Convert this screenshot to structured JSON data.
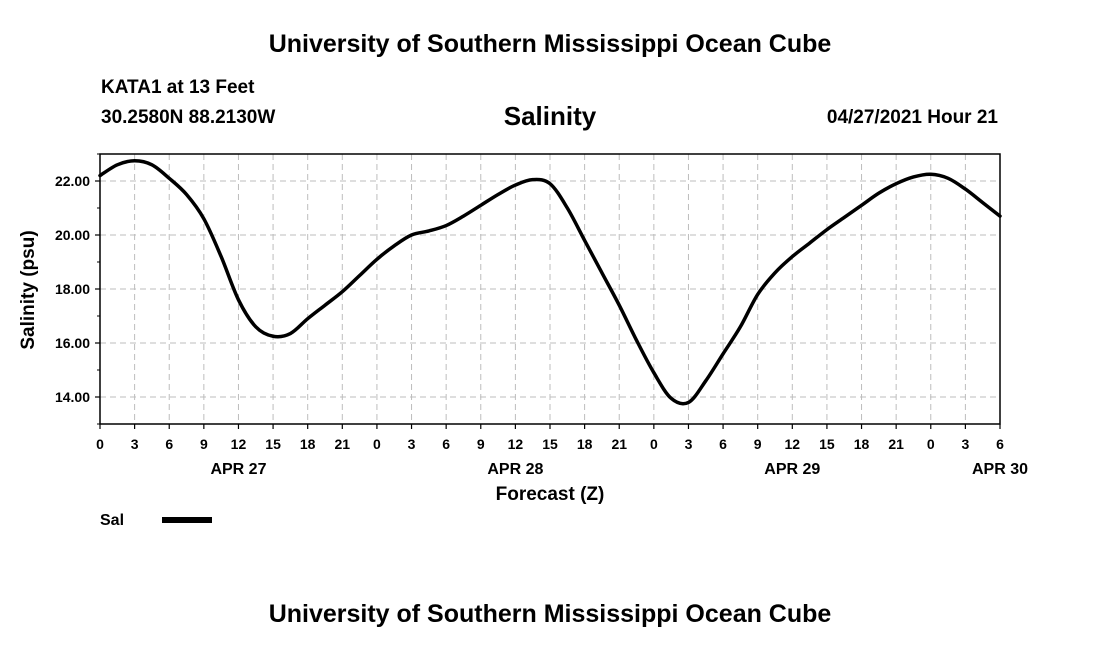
{
  "header": {
    "title": "University of Southern Mississippi Ocean Cube",
    "station": "KATA1 at 13 Feet",
    "coords": "30.2580N  88.2130W",
    "chart_title": "Salinity",
    "timestamp": "04/27/2021 Hour 21"
  },
  "footer": {
    "title": "University of Southern Mississippi Ocean Cube"
  },
  "chart_data": {
    "type": "line",
    "title": "Salinity",
    "xlabel": "Forecast (Z)",
    "ylabel": "Salinity (psu)",
    "x_range": [
      0,
      78
    ],
    "ylim": [
      13.0,
      23.0
    ],
    "y_ticks": [
      "14.00",
      "16.00",
      "18.00",
      "20.00",
      "22.00"
    ],
    "x_ticks": [
      "0",
      "3",
      "6",
      "9",
      "12",
      "15",
      "18",
      "21",
      "0",
      "3",
      "6",
      "9",
      "12",
      "15",
      "18",
      "21",
      "0",
      "3",
      "6",
      "9",
      "12",
      "15",
      "18",
      "21",
      "0",
      "3",
      "6"
    ],
    "date_labels": [
      {
        "label": "APR 27",
        "hour": 12
      },
      {
        "label": "APR 28",
        "hour": 36
      },
      {
        "label": "APR 29",
        "hour": 60
      },
      {
        "label": "APR 30",
        "hour": 78
      }
    ],
    "grid": true,
    "legend": {
      "position": "bottom-left",
      "entry": "Sal"
    },
    "series": [
      {
        "name": "Sal",
        "color": "#000000",
        "x": [
          0,
          1.5,
          3,
          4.5,
          6,
          7.5,
          9,
          10.5,
          12,
          13.5,
          15,
          16.5,
          18,
          19.5,
          21,
          22.5,
          24,
          25.5,
          27,
          28.5,
          30,
          31.5,
          33,
          34.5,
          36,
          37.5,
          39,
          40.5,
          42,
          43.5,
          45,
          46.5,
          48,
          49.5,
          51,
          52.5,
          54,
          55.5,
          57,
          58.5,
          60,
          61.5,
          63,
          64.5,
          66,
          67.5,
          69,
          70.5,
          72,
          73.5,
          75,
          76.5,
          78
        ],
        "values": [
          22.2,
          22.6,
          22.75,
          22.6,
          22.1,
          21.5,
          20.6,
          19.2,
          17.6,
          16.6,
          16.25,
          16.35,
          16.9,
          17.4,
          17.9,
          18.5,
          19.1,
          19.6,
          20.0,
          20.15,
          20.35,
          20.7,
          21.1,
          21.5,
          21.85,
          22.05,
          21.9,
          21.0,
          19.8,
          18.6,
          17.4,
          16.1,
          14.9,
          13.95,
          13.8,
          14.6,
          15.6,
          16.6,
          17.8,
          18.6,
          19.2,
          19.7,
          20.2,
          20.65,
          21.1,
          21.55,
          21.9,
          22.15,
          22.25,
          22.1,
          21.7,
          21.2,
          20.7
        ]
      }
    ]
  }
}
